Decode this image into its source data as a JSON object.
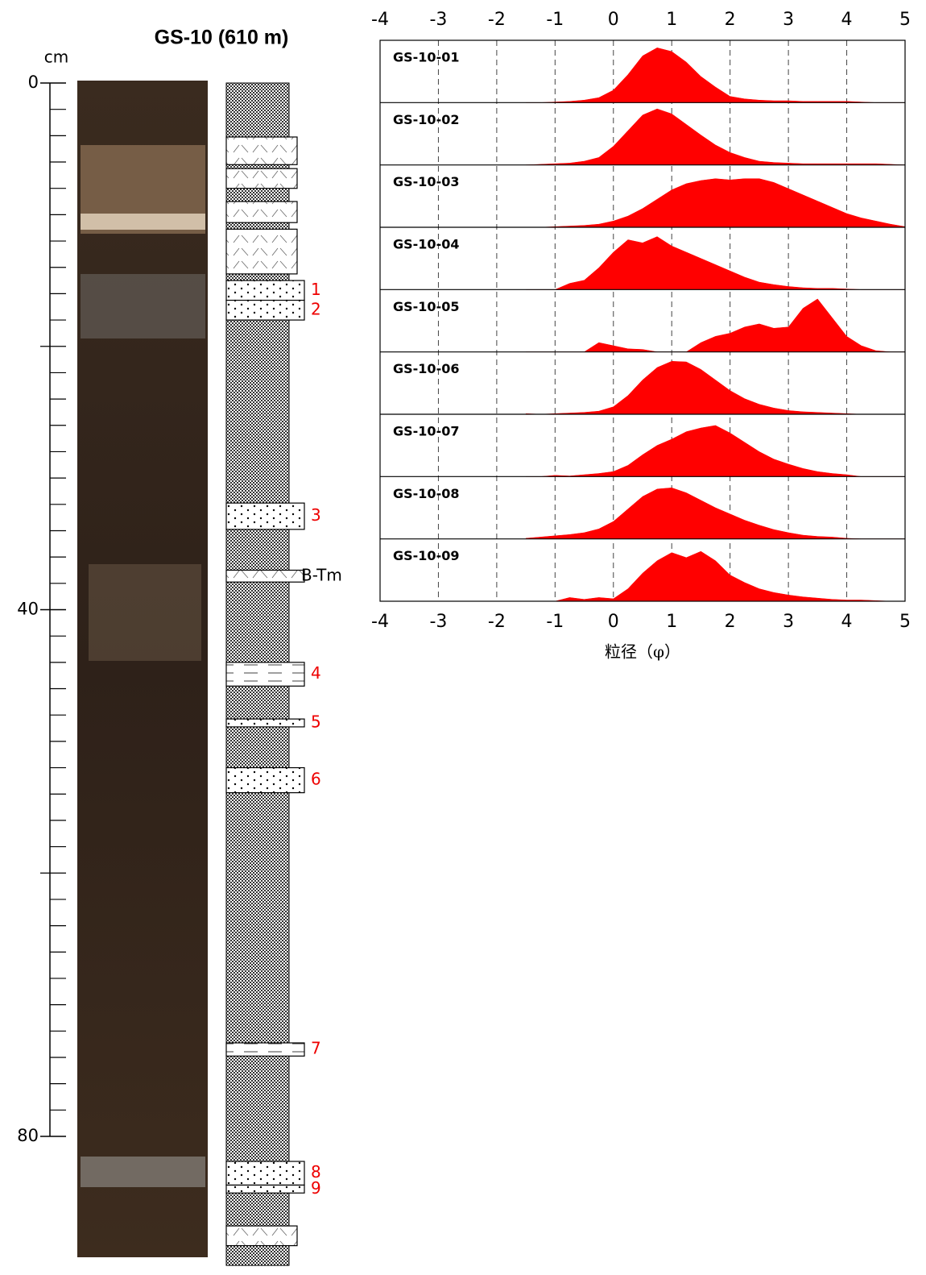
{
  "core": {
    "title": "GS-10 (610 m)",
    "depth_label": "cm",
    "ylim": [
      0,
      80
    ],
    "yticks": [
      0,
      40,
      80
    ],
    "yticks_minor": [
      2,
      4,
      6,
      8,
      10,
      12,
      14,
      16,
      18,
      20,
      22,
      24,
      26,
      28,
      30,
      32,
      34,
      36,
      38,
      42,
      44,
      46,
      48,
      50,
      52,
      54,
      56,
      58,
      60,
      62,
      64,
      66,
      68,
      70,
      72,
      74,
      76,
      78
    ],
    "column_bottom": 89.8,
    "layers": [
      {
        "top": 4.1,
        "bottom": 6.2,
        "kind": "tephra"
      },
      {
        "top": 6.5,
        "bottom": 8.0,
        "kind": "tephra"
      },
      {
        "top": 9.0,
        "bottom": 10.6,
        "kind": "tephra"
      },
      {
        "top": 11.1,
        "bottom": 14.5,
        "kind": "tephra"
      },
      {
        "top": 15.0,
        "bottom": 16.5,
        "kind": "sand",
        "label": "1"
      },
      {
        "top": 16.5,
        "bottom": 18.0,
        "kind": "sand",
        "label": "2"
      },
      {
        "top": 31.9,
        "bottom": 33.9,
        "kind": "sand",
        "label": "3"
      },
      {
        "top": 37.0,
        "bottom": 37.9,
        "kind": "tephra",
        "label": "B-Tm"
      },
      {
        "top": 44.0,
        "bottom": 45.8,
        "kind": "silt",
        "label": "4"
      },
      {
        "top": 48.3,
        "bottom": 48.9,
        "kind": "sand",
        "label": "5"
      },
      {
        "top": 52.0,
        "bottom": 53.9,
        "kind": "sand",
        "label": "6"
      },
      {
        "top": 72.9,
        "bottom": 73.9,
        "kind": "silt",
        "label": "7"
      },
      {
        "top": 81.9,
        "bottom": 83.7,
        "kind": "sand",
        "label": "8"
      },
      {
        "top": 83.7,
        "bottom": 84.3,
        "kind": "sand",
        "label": "9"
      },
      {
        "top": 86.8,
        "bottom": 88.3,
        "kind": "tephra"
      }
    ]
  },
  "chart_data": {
    "type": "area",
    "xlabel": "粒径（φ）",
    "color": "#ff0000",
    "grid": true,
    "xlim": [
      -4,
      5
    ],
    "xticks": [
      -4,
      -3,
      -2,
      -1,
      0,
      1,
      2,
      3,
      4,
      5
    ],
    "ylim": [
      0,
      1
    ],
    "x": [
      -1.5,
      -1.25,
      -1,
      -0.75,
      -0.5,
      -0.25,
      0,
      0.25,
      0.5,
      0.75,
      1,
      1.25,
      1.5,
      1.75,
      2,
      2.25,
      2.5,
      2.75,
      3,
      3.25,
      3.5,
      3.75,
      4,
      4.25,
      4.5,
      4.75,
      5
    ],
    "series": [
      {
        "name": "GS-10-01",
        "values": [
          0,
          0,
          0.01,
          0.02,
          0.04,
          0.08,
          0.2,
          0.45,
          0.75,
          0.88,
          0.82,
          0.65,
          0.42,
          0.25,
          0.1,
          0.06,
          0.04,
          0.03,
          0.03,
          0.02,
          0.02,
          0.02,
          0.02,
          0.01,
          0,
          0,
          0
        ]
      },
      {
        "name": "GS-10-02",
        "values": [
          0,
          0.01,
          0.02,
          0.03,
          0.06,
          0.12,
          0.3,
          0.55,
          0.8,
          0.9,
          0.82,
          0.65,
          0.48,
          0.32,
          0.2,
          0.12,
          0.06,
          0.04,
          0.03,
          0.02,
          0.02,
          0.02,
          0.02,
          0.02,
          0.02,
          0.01,
          0
        ]
      },
      {
        "name": "GS-10-03",
        "values": [
          0,
          0,
          0.01,
          0.02,
          0.03,
          0.05,
          0.1,
          0.18,
          0.3,
          0.45,
          0.6,
          0.7,
          0.75,
          0.78,
          0.76,
          0.78,
          0.78,
          0.72,
          0.62,
          0.52,
          0.42,
          0.32,
          0.22,
          0.15,
          0.1,
          0.05,
          0.01
        ]
      },
      {
        "name": "GS-10-04",
        "values": [
          0,
          0,
          0,
          0.1,
          0.15,
          0.35,
          0.6,
          0.8,
          0.75,
          0.85,
          0.7,
          0.6,
          0.5,
          0.4,
          0.3,
          0.2,
          0.12,
          0.08,
          0.05,
          0.03,
          0.02,
          0.02,
          0.01,
          0,
          0,
          0,
          0
        ]
      },
      {
        "name": "GS-10-05",
        "values": [
          0,
          0,
          0,
          0,
          0,
          0.15,
          0.1,
          0.05,
          0.04,
          0,
          0,
          0,
          0.15,
          0.25,
          0.3,
          0.4,
          0.45,
          0.38,
          0.4,
          0.7,
          0.85,
          0.55,
          0.25,
          0.1,
          0.02,
          0,
          0
        ]
      },
      {
        "name": "GS-10-06",
        "values": [
          0.01,
          0,
          0.01,
          0.02,
          0.03,
          0.05,
          0.12,
          0.3,
          0.55,
          0.75,
          0.85,
          0.84,
          0.72,
          0.55,
          0.38,
          0.25,
          0.16,
          0.1,
          0.06,
          0.04,
          0.03,
          0.02,
          0.01,
          0,
          0,
          0,
          0
        ]
      },
      {
        "name": "GS-10-07",
        "values": [
          0,
          0,
          0.02,
          0.01,
          0.03,
          0.05,
          0.08,
          0.18,
          0.35,
          0.5,
          0.6,
          0.72,
          0.78,
          0.82,
          0.7,
          0.55,
          0.4,
          0.28,
          0.2,
          0.13,
          0.08,
          0.05,
          0.03,
          0,
          0,
          0,
          0
        ]
      },
      {
        "name": "GS-10-08",
        "values": [
          0.01,
          0.03,
          0.05,
          0.07,
          0.1,
          0.16,
          0.28,
          0.48,
          0.68,
          0.8,
          0.82,
          0.74,
          0.62,
          0.5,
          0.4,
          0.3,
          0.22,
          0.15,
          0.1,
          0.06,
          0.04,
          0.03,
          0.01,
          0,
          0,
          0,
          0
        ]
      },
      {
        "name": "GS-10-09",
        "values": [
          0,
          0,
          0,
          0.06,
          0.03,
          0.06,
          0.04,
          0.2,
          0.45,
          0.65,
          0.78,
          0.7,
          0.8,
          0.65,
          0.42,
          0.3,
          0.2,
          0.14,
          0.1,
          0.07,
          0.05,
          0.03,
          0.02,
          0.02,
          0.01,
          0,
          0
        ]
      }
    ]
  }
}
